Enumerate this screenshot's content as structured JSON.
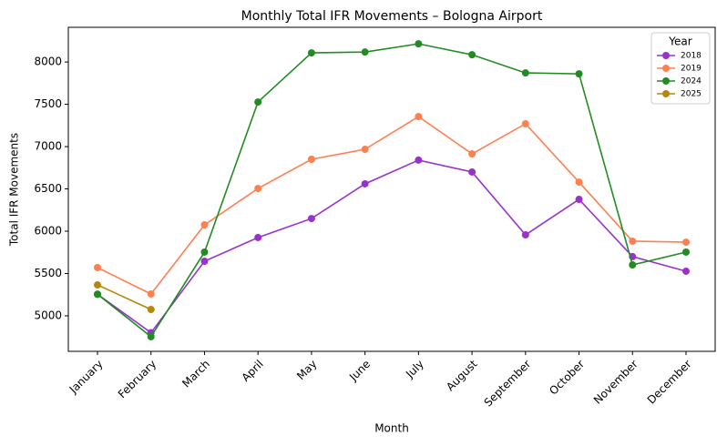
{
  "chart_data": {
    "type": "line",
    "title": "Monthly Total IFR Movements – Bologna Airport",
    "x_label": "Month",
    "y_label": "Total IFR Movements",
    "categories": [
      "January",
      "February",
      "March",
      "April",
      "May",
      "June",
      "July",
      "August",
      "September",
      "October",
      "November",
      "December"
    ],
    "series": [
      {
        "name": "2018",
        "color": "#9932cc",
        "values": [
          5255,
          4800,
          5645,
          5925,
          6150,
          6560,
          6840,
          6700,
          5957,
          6376,
          5700,
          5527
        ]
      },
      {
        "name": "2019",
        "color": "#ff7f50",
        "values": [
          5570,
          5258,
          6075,
          6505,
          6850,
          6968,
          7355,
          6914,
          7270,
          6580,
          5882,
          5870
        ]
      },
      {
        "name": "2024",
        "color": "#228b22",
        "values": [
          5255,
          4753,
          5753,
          7527,
          8108,
          8118,
          8215,
          8086,
          7871,
          7860,
          5602,
          5753
        ]
      },
      {
        "name": "2025",
        "color": "#b8860b",
        "values": [
          5365,
          5075,
          null,
          null,
          null,
          null,
          null,
          null,
          null,
          null,
          null,
          null
        ]
      }
    ],
    "legend_title": "Year",
    "legend": "upper right",
    "ylim": [
      4580,
      8410
    ],
    "yticks": [
      5000,
      5500,
      6000,
      6500,
      7000,
      7500,
      8000
    ],
    "grid": false
  }
}
